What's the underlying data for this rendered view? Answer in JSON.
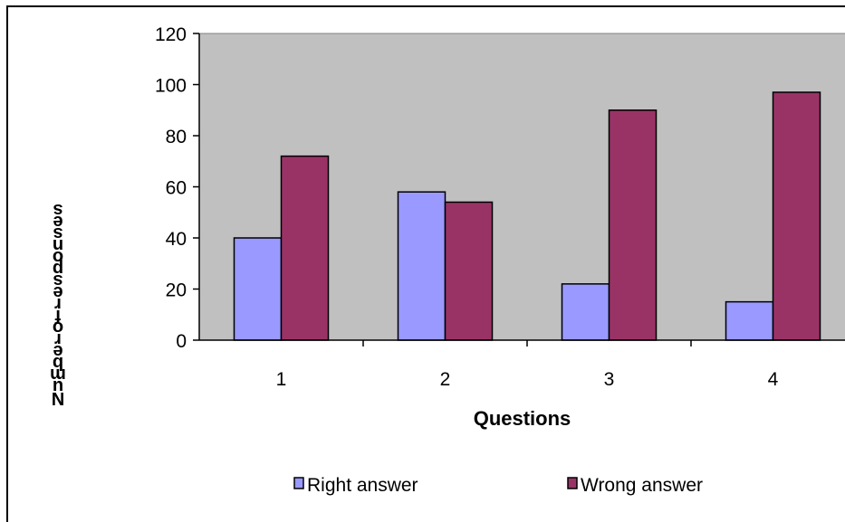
{
  "chart_data": {
    "type": "bar",
    "categories": [
      "1",
      "2",
      "3",
      "4"
    ],
    "series": [
      {
        "name": "Right answer",
        "values": [
          40,
          58,
          22,
          15
        ],
        "color": "#9999ff"
      },
      {
        "name": "Wrong answer",
        "values": [
          72,
          54,
          90,
          97
        ],
        "color": "#993366"
      }
    ],
    "xlabel": "Questions",
    "ylabel": "Number of responses",
    "ylim": [
      0,
      120
    ],
    "yticks": [
      0,
      20,
      40,
      60,
      80,
      100,
      120
    ],
    "grid": false,
    "plot_background": "#c0c0c0",
    "legend_position": "bottom"
  }
}
